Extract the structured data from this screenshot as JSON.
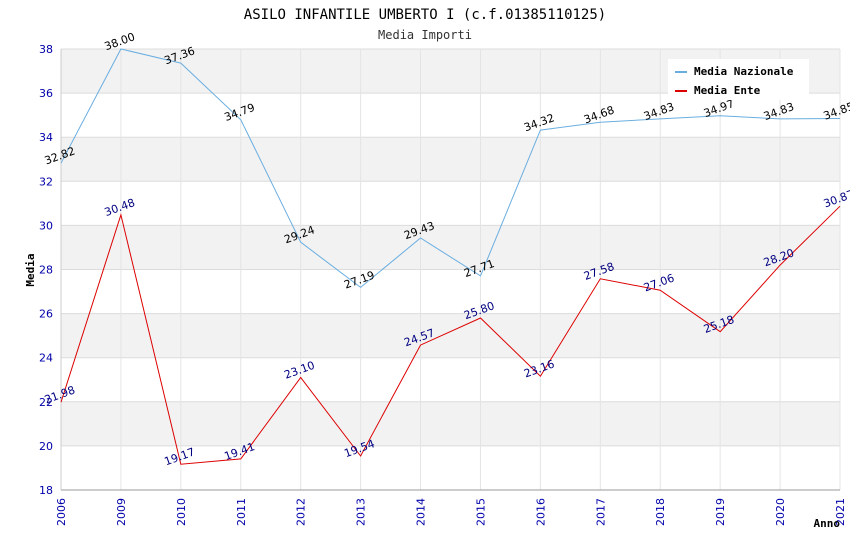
{
  "chart_data": {
    "type": "line",
    "title": "ASILO INFANTILE UMBERTO I (c.f.01385110125)",
    "subtitle": "Media Importi",
    "xlabel": "Anno",
    "ylabel": "Media",
    "ylim": [
      18,
      38
    ],
    "yticks": [
      "18",
      "20",
      "22",
      "24",
      "26",
      "28",
      "30",
      "32",
      "34",
      "36",
      "38"
    ],
    "categories": [
      "2006",
      "2009",
      "2010",
      "2011",
      "2012",
      "2013",
      "2014",
      "2015",
      "2016",
      "2017",
      "2018",
      "2019",
      "2020",
      "2021"
    ],
    "grid": true,
    "legend_position": "top-right",
    "series": [
      {
        "name": "Media Nazionale",
        "color": "#6aaee0",
        "label_color": "#000000",
        "values": [
          32.82,
          38.0,
          37.36,
          34.79,
          29.24,
          27.19,
          29.43,
          27.71,
          34.32,
          34.68,
          34.83,
          34.97,
          34.83,
          34.85
        ],
        "labels": [
          "32.82",
          "38.00",
          "37.36",
          "34.79",
          "29.24",
          "27.19",
          "29.43",
          "27.71",
          "34.32",
          "34.68",
          "34.83",
          "34.97",
          "34.83",
          "34.85"
        ]
      },
      {
        "name": "Media Ente",
        "color": "#dd0000",
        "label_color": "#000080",
        "values": [
          21.98,
          30.48,
          19.17,
          19.41,
          23.1,
          19.54,
          24.57,
          25.8,
          23.16,
          27.58,
          27.06,
          25.18,
          28.2,
          30.87
        ],
        "labels": [
          "21.98",
          "30.48",
          "19.17",
          "19.41",
          "23.10",
          "19.54",
          "24.57",
          "25.80",
          "23.16",
          "27.58",
          "27.06",
          "25.18",
          "28.20",
          "30.87"
        ]
      }
    ]
  }
}
